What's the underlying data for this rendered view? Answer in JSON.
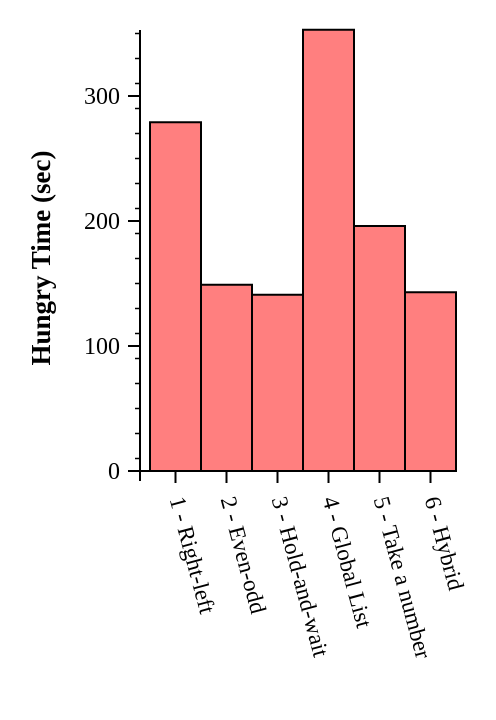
{
  "chart_data": {
    "type": "bar",
    "categories": [
      "1 - Right-left",
      "2 - Even-odd",
      "3 - Hold-and-wait",
      "4 - Global List",
      "5 - Take a number",
      "6 - Hybrid"
    ],
    "values": [
      279,
      149,
      141,
      353,
      196,
      143
    ],
    "title": "",
    "xlabel": "",
    "ylabel": "Hungry Time (sec)",
    "ylim": [
      0,
      355
    ],
    "yticks": [
      0,
      100,
      200,
      300
    ],
    "ytick_labels": [
      "0",
      "100",
      "200",
      "300"
    ],
    "minor_tick_step": 20,
    "bar_color": "#ff7f7f",
    "bar_edge_color": "#000000",
    "grid": false,
    "legend": "none"
  }
}
